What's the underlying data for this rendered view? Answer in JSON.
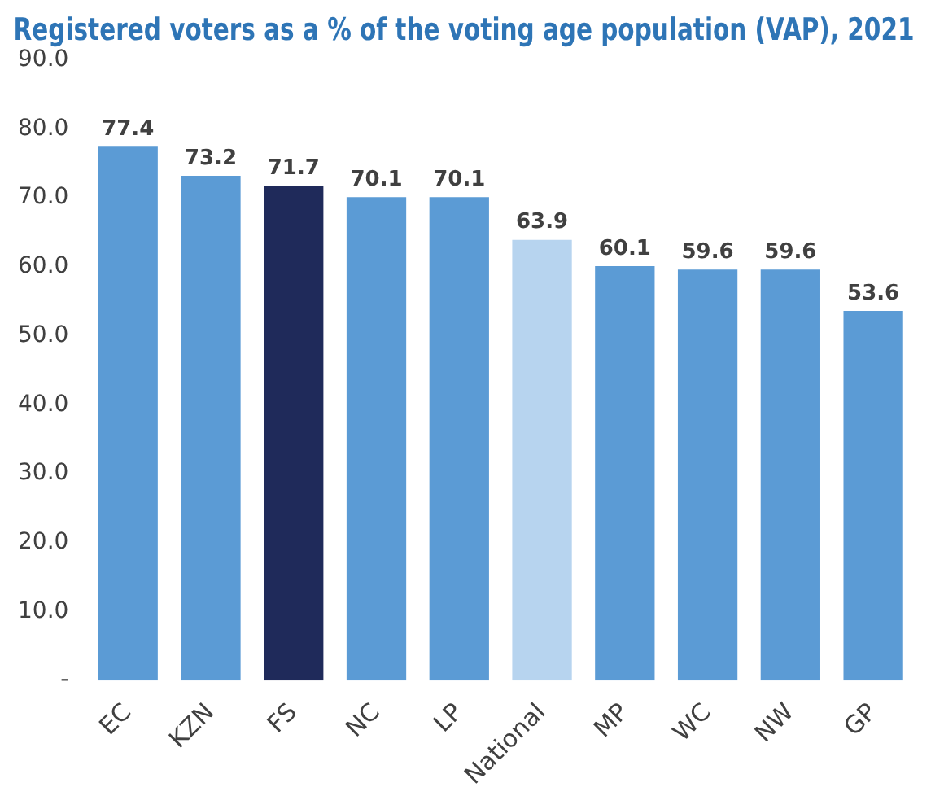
{
  "chart_data": {
    "type": "bar",
    "title": "Registered voters as a % of the voting age population (VAP), 2021",
    "categories": [
      "EC",
      "KZN",
      "FS",
      "NC",
      "LP",
      "National",
      "MP",
      "WC",
      "NW",
      "GP"
    ],
    "values": [
      77.4,
      73.2,
      71.7,
      70.1,
      70.1,
      63.9,
      60.1,
      59.6,
      59.6,
      53.6
    ],
    "colors": [
      "#5b9bd5",
      "#5b9bd5",
      "#1f2a5a",
      "#5b9bd5",
      "#5b9bd5",
      "#b7d4ef",
      "#5b9bd5",
      "#5b9bd5",
      "#5b9bd5",
      "#5b9bd5"
    ],
    "ylim": [
      0,
      90
    ],
    "yticks": [
      {
        "value": 0,
        "label": "-"
      },
      {
        "value": 10,
        "label": "10.0"
      },
      {
        "value": 20,
        "label": "20.0"
      },
      {
        "value": 30,
        "label": "30.0"
      },
      {
        "value": 40,
        "label": "40.0"
      },
      {
        "value": 50,
        "label": "50.0"
      },
      {
        "value": 60,
        "label": "60.0"
      },
      {
        "value": 70,
        "label": "70.0"
      },
      {
        "value": 80,
        "label": "80.0"
      },
      {
        "value": 90,
        "label": "90.0"
      }
    ],
    "grid": false,
    "legend": false,
    "data_labels": true
  }
}
